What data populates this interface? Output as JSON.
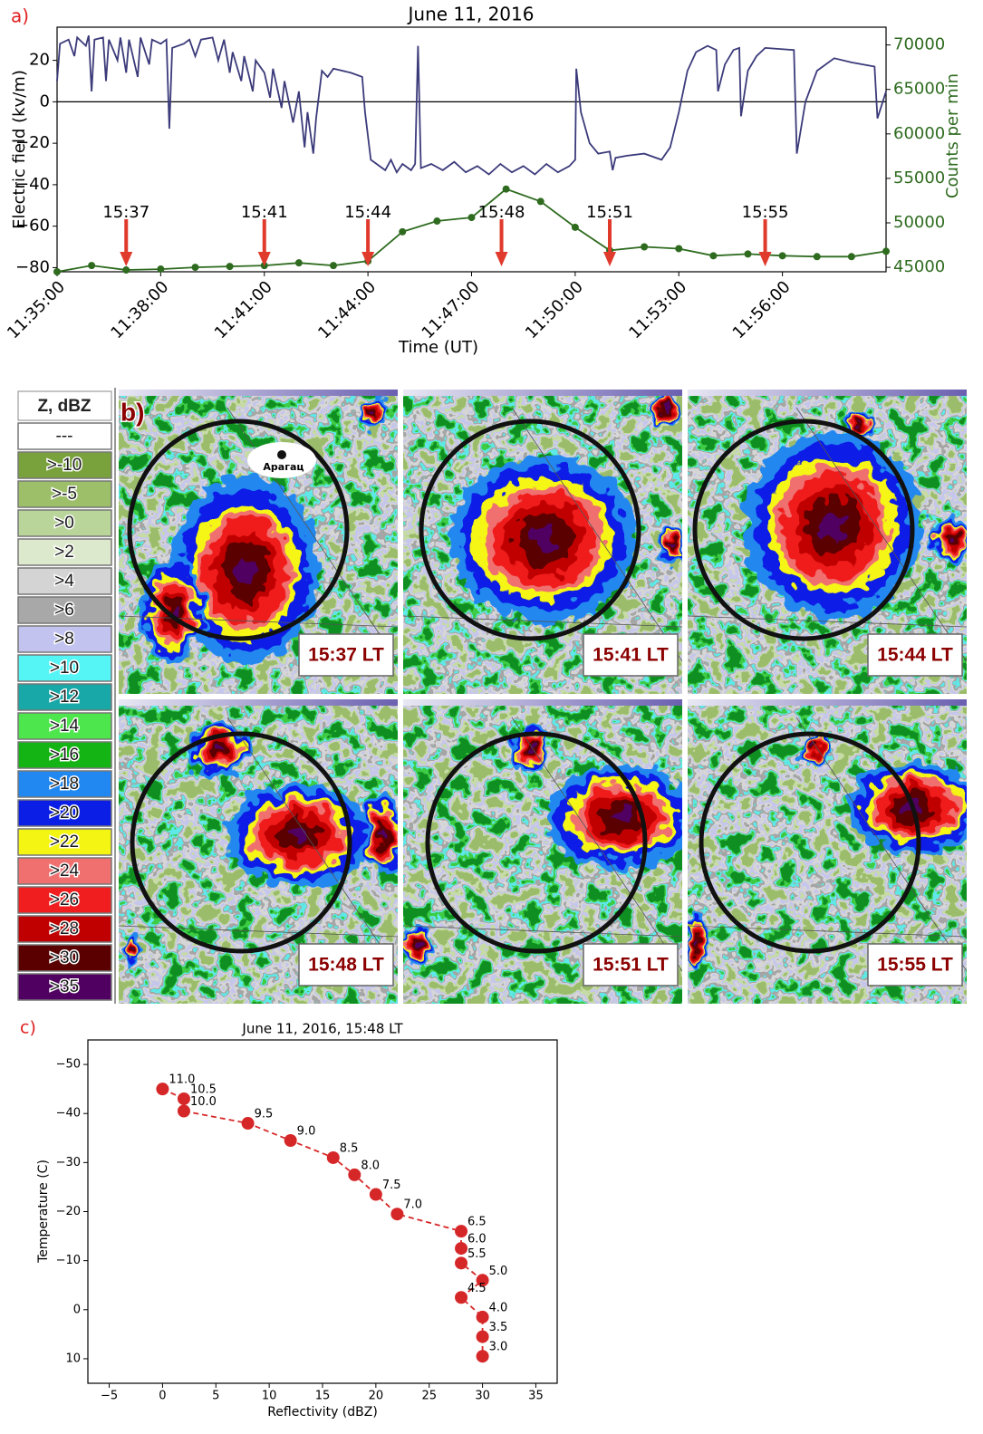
{
  "chart_data": [
    {
      "type": "line",
      "panel_label": "a)",
      "title": "June 11, 2016",
      "x_label": "Time (UT)",
      "y_label": "Electric field (kv/m)",
      "y2_label": "Counts per min",
      "xlim": [
        "11:35:00",
        "11:59:00"
      ],
      "xticks": [
        "11:35:00",
        "11:38:00",
        "11:41:00",
        "11:44:00",
        "11:47:00",
        "11:50:00",
        "11:53:00",
        "11:56:00"
      ],
      "ylim": [
        -82,
        36
      ],
      "yticks": [
        {
          "value": -80,
          "label": "−80"
        },
        {
          "value": -60,
          "label": "−60"
        },
        {
          "value": -40,
          "label": "−40"
        },
        {
          "value": -20,
          "label": "−20"
        },
        0,
        20
      ],
      "y2lim": [
        44500,
        72000
      ],
      "y2ticks": [
        45000,
        50000,
        55000,
        60000,
        65000,
        70000
      ],
      "zero_line": true,
      "series": [
        {
          "color": "#3b3a7a",
          "line_style": "solid",
          "x": [
            "11:35:00",
            "11:35:05",
            "11:35:20",
            "11:35:30",
            "11:35:35",
            "11:35:50",
            "11:35:55",
            "11:36:00",
            "11:36:05",
            "11:36:20",
            "11:36:25",
            "11:36:30",
            "11:36:45",
            "11:36:50",
            "11:37:00",
            "11:37:05",
            "11:37:20",
            "11:37:25",
            "11:37:40",
            "11:37:45",
            "11:38:00",
            "11:38:10",
            "11:38:15",
            "11:38:20",
            "11:38:40",
            "11:38:50",
            "11:39:00",
            "11:39:10",
            "11:39:30",
            "11:39:40",
            "11:39:50",
            "11:40:00",
            "11:40:05",
            "11:40:20",
            "11:40:25",
            "11:40:40",
            "11:40:45",
            "11:41:00",
            "11:41:10",
            "11:41:15",
            "11:41:30",
            "11:41:35",
            "11:41:50",
            "11:42:00",
            "11:42:10",
            "11:42:15",
            "11:42:25",
            "11:42:30",
            "11:42:40",
            "11:42:50",
            "11:43:00",
            "11:43:30",
            "11:43:50",
            "11:43:55",
            "11:44:05",
            "11:44:15",
            "11:44:30",
            "11:44:40",
            "11:44:50",
            "11:45:00",
            "11:45:15",
            "11:45:22",
            "11:45:27",
            "11:45:32",
            "11:45:50",
            "11:46:10",
            "11:46:30",
            "11:46:50",
            "11:47:10",
            "11:47:30",
            "11:47:50",
            "11:48:10",
            "11:48:30",
            "11:48:50",
            "11:49:10",
            "11:49:30",
            "11:49:50",
            "11:50:00",
            "11:50:02",
            "11:50:10",
            "11:50:25",
            "11:50:40",
            "11:51:00",
            "11:51:05",
            "11:51:10",
            "11:51:30",
            "11:52:00",
            "11:52:30",
            "11:52:45",
            "11:53:00",
            "11:53:15",
            "11:53:30",
            "11:53:50",
            "11:54:05",
            "11:54:08",
            "11:54:20",
            "11:54:35",
            "11:54:45",
            "11:54:48",
            "11:55:00",
            "11:55:15",
            "11:55:30",
            "11:56:20",
            "11:56:25",
            "11:56:40",
            "11:57:00",
            "11:57:30",
            "11:58:00",
            "11:58:40",
            "11:58:45",
            "11:59:00"
          ],
          "values": [
            10,
            28,
            30,
            22,
            31,
            27,
            32,
            5,
            30,
            31,
            10,
            30,
            20,
            31,
            14,
            30,
            12,
            31,
            18,
            30,
            28,
            30,
            -13,
            26,
            28,
            30,
            22,
            30,
            31,
            20,
            30,
            14,
            24,
            10,
            22,
            5,
            20,
            14,
            2,
            16,
            -3,
            10,
            -10,
            5,
            -22,
            -5,
            -25,
            -8,
            15,
            12,
            16,
            14,
            12,
            -5,
            -28,
            -30,
            -33,
            -28,
            -34,
            -30,
            -33,
            -30,
            27,
            -32,
            -30,
            -33,
            -29,
            -34,
            -31,
            -35,
            -30,
            -34,
            -31,
            -35,
            -30,
            -34,
            -31,
            -28,
            16,
            -5,
            -20,
            -25,
            -24,
            -33,
            -27,
            -26,
            -25,
            -28,
            -22,
            -5,
            15,
            24,
            27,
            25,
            5,
            18,
            25,
            26,
            -7,
            15,
            22,
            26,
            25,
            -25,
            0,
            15,
            21,
            19,
            17,
            -8,
            5
          ]
        },
        {
          "color": "#2e6b1f",
          "line_style": "solid",
          "axis": "y2",
          "marker": "circle",
          "x": [
            "11:35:00",
            "11:36:00",
            "11:37:00",
            "11:38:00",
            "11:39:00",
            "11:40:00",
            "11:41:00",
            "11:42:00",
            "11:43:00",
            "11:44:00",
            "11:45:00",
            "11:46:00",
            "11:47:00",
            "11:48:00",
            "11:49:00",
            "11:50:00",
            "11:51:00",
            "11:52:00",
            "11:53:00",
            "11:54:00",
            "11:55:00",
            "11:56:00",
            "11:57:00",
            "11:58:00",
            "11:59:00"
          ],
          "values": [
            44500,
            45200,
            44700,
            44800,
            45000,
            45100,
            45200,
            45500,
            45200,
            45700,
            49000,
            50200,
            50600,
            53800,
            52400,
            49500,
            46900,
            47300,
            47100,
            46300,
            46500,
            46300,
            46200,
            46200,
            46800
          ]
        }
      ],
      "annotation_color": "#e03a2c",
      "annotations": [
        {
          "label": "15:37",
          "x": "11:37:00"
        },
        {
          "label": "15:41",
          "x": "11:41:00"
        },
        {
          "label": "15:44",
          "x": "11:44:00"
        },
        {
          "label": "15:48",
          "x": "11:47:52"
        },
        {
          "label": "15:51",
          "x": "11:51:00"
        },
        {
          "label": "15:55",
          "x": "11:55:30"
        }
      ]
    },
    {
      "type": "line",
      "panel_label": "c)",
      "title": "June 11, 2016, 15:48 LT",
      "x_label": "Reflectivity (dBZ)",
      "y_label": "Temperature (C)",
      "xlim": [
        -7,
        37
      ],
      "xticks": [
        {
          "value": -5,
          "label": "−5"
        },
        0,
        5,
        10,
        15,
        20,
        25,
        30,
        35
      ],
      "ylim": [
        -55,
        15
      ],
      "invert_y": true,
      "yticks": [
        {
          "value": -50,
          "label": "−50"
        },
        {
          "value": -40,
          "label": "−40"
        },
        {
          "value": -30,
          "label": "−30"
        },
        {
          "value": -20,
          "label": "−20"
        },
        {
          "value": -10,
          "label": "−10"
        },
        0,
        10
      ],
      "series": [
        {
          "color": "#d62728",
          "line_style": "dashed",
          "marker": "circle",
          "x": [
            0,
            2,
            2,
            8,
            12,
            16,
            18,
            20,
            22,
            28,
            28,
            28,
            30,
            28,
            30,
            30,
            30
          ],
          "values": [
            -45,
            -43,
            -40.5,
            -38,
            -34.5,
            -31,
            -27.5,
            -23.5,
            -19.5,
            -16,
            -12.5,
            -9.5,
            -6,
            -2.5,
            1.5,
            5.5,
            9.5
          ],
          "point_labels": [
            "11.0",
            "10.5",
            "10.0",
            "9.5",
            "9.0",
            "8.5",
            "8.0",
            "7.5",
            "7.0",
            "6.5",
            "6.0",
            "5.5",
            "5.0",
            "4.5",
            "4.0",
            "3.5",
            "3.0"
          ]
        }
      ]
    }
  ],
  "radar": {
    "panel_label": "b)",
    "legend_title": "Z, dBZ",
    "legend": [
      {
        "label": "---",
        "color": "#ffffff"
      },
      {
        "label": ">-10",
        "color": "#7aa23c"
      },
      {
        "label": ">-5",
        "color": "#9dbf6a"
      },
      {
        "label": ">0",
        "color": "#b9d59a"
      },
      {
        "label": ">2",
        "color": "#dde9cc"
      },
      {
        "label": ">4",
        "color": "#d4d4d4"
      },
      {
        "label": ">6",
        "color": "#a8a8a8"
      },
      {
        "label": ">8",
        "color": "#c3c3f0"
      },
      {
        "label": ">10",
        "color": "#55f5f5"
      },
      {
        "label": ">12",
        "color": "#18a8a8"
      },
      {
        "label": ">14",
        "color": "#4de64d"
      },
      {
        "label": ">16",
        "color": "#14b414"
      },
      {
        "label": ">18",
        "color": "#2088f0"
      },
      {
        "label": ">20",
        "color": "#0a1ee6"
      },
      {
        "label": ">22",
        "color": "#f5f514"
      },
      {
        "label": ">24",
        "color": "#f07070"
      },
      {
        "label": ">26",
        "color": "#f01e1e"
      },
      {
        "label": ">28",
        "color": "#c00000"
      },
      {
        "label": ">30",
        "color": "#5a0000"
      },
      {
        "label": ">35",
        "color": "#500060"
      }
    ],
    "place_name": "Арагац",
    "panels": [
      {
        "label": "15:37 LT"
      },
      {
        "label": "15:41 LT"
      },
      {
        "label": "15:44 LT"
      },
      {
        "label": "15:48 LT"
      },
      {
        "label": "15:51 LT"
      },
      {
        "label": "15:55 LT"
      }
    ]
  }
}
